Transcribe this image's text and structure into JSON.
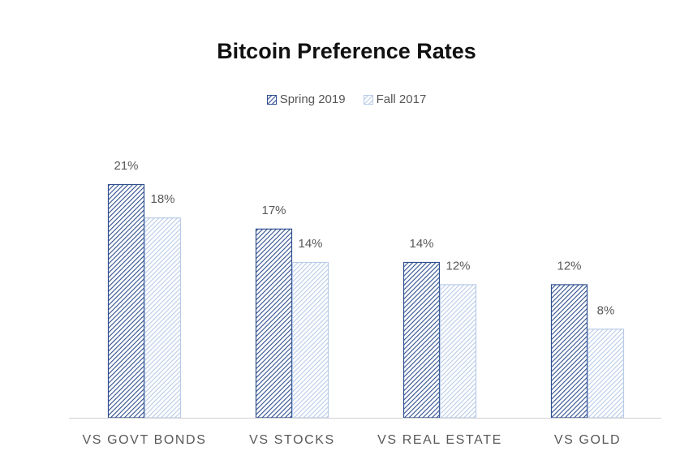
{
  "chart_data": {
    "type": "bar",
    "title": "Bitcoin Preference Rates",
    "categories": [
      "VS GOVT BONDS",
      "VS STOCKS",
      "VS REAL ESTATE",
      "VS GOLD"
    ],
    "series": [
      {
        "name": "Spring 2019",
        "values": [
          21,
          17,
          14,
          12
        ],
        "labels": [
          "21%",
          "17%",
          "14%",
          "12%"
        ],
        "color": "#2f4f8f"
      },
      {
        "name": "Fall 2017",
        "values": [
          18,
          14,
          12,
          8
        ],
        "labels": [
          "18%",
          "14%",
          "12%",
          "8%"
        ],
        "color": "#b8cbe8"
      }
    ],
    "value_format": "percent",
    "ylim": [
      0,
      21
    ],
    "grid": false,
    "legend_position": "top"
  }
}
